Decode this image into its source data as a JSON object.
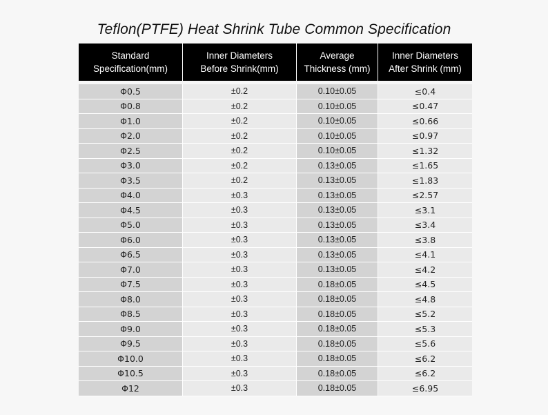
{
  "title": "Teflon(PTFE) Heat Shrink Tube Common Specification",
  "headers": [
    {
      "line1": "Standard",
      "line2": "Specification(mm)"
    },
    {
      "line1": "Inner Diameters",
      "line2": "Before Shrink(mm)"
    },
    {
      "line1": "Average",
      "line2": "Thickness (mm)"
    },
    {
      "line1": "Inner Diameters",
      "line2": "After Shrink (mm)"
    }
  ],
  "rows": [
    [
      "Φ0.5",
      "±0.2",
      "0.10±0.05",
      "≤0.4"
    ],
    [
      "Φ0.8",
      "±0.2",
      "0.10±0.05",
      "≤0.47"
    ],
    [
      "Φ1.0",
      "±0.2",
      "0.10±0.05",
      "≤0.66"
    ],
    [
      "Φ2.0",
      "±0.2",
      "0.10±0.05",
      "≤0.97"
    ],
    [
      "Φ2.5",
      "±0.2",
      "0.10±0.05",
      "≤1.32"
    ],
    [
      "Φ3.0",
      "±0.2",
      "0.13±0.05",
      "≤1.65"
    ],
    [
      "Φ3.5",
      "±0.2",
      "0.13±0.05",
      "≤1.83"
    ],
    [
      "Φ4.0",
      "±0.3",
      "0.13±0.05",
      "≤2.57"
    ],
    [
      "Φ4.5",
      "±0.3",
      "0.13±0.05",
      "≤3.1"
    ],
    [
      "Φ5.0",
      "±0.3",
      "0.13±0.05",
      "≤3.4"
    ],
    [
      "Φ6.0",
      "±0.3",
      "0.13±0.05",
      "≤3.8"
    ],
    [
      "Φ6.5",
      "±0.3",
      "0.13±0.05",
      "≤4.1"
    ],
    [
      "Φ7.0",
      "±0.3",
      "0.13±0.05",
      "≤4.2"
    ],
    [
      "Φ7.5",
      "±0.3",
      "0.18±0.05",
      "≤4.5"
    ],
    [
      "Φ8.0",
      "±0.3",
      "0.18±0.05",
      "≤4.8"
    ],
    [
      "Φ8.5",
      "±0.3",
      "0.18±0.05",
      "≤5.2"
    ],
    [
      "Φ9.0",
      "±0.3",
      "0.18±0.05",
      "≤5.3"
    ],
    [
      "Φ9.5",
      "±0.3",
      "0.18±0.05",
      "≤5.6"
    ],
    [
      "Φ10.0",
      "±0.3",
      "0.18±0.05",
      "≤6.2"
    ],
    [
      "Φ10.5",
      "±0.3",
      "0.18±0.05",
      "≤6.2"
    ],
    [
      "Φ12",
      "±0.3",
      "0.18±0.05",
      "≤6.95"
    ]
  ]
}
